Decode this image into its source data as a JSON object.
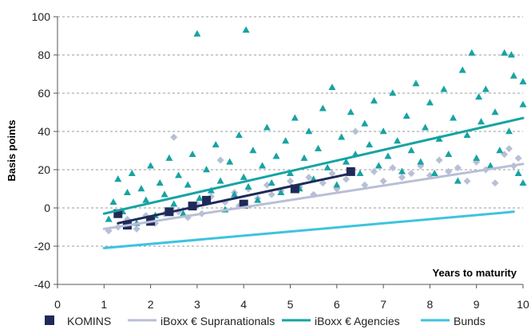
{
  "chart_data": {
    "type": "scatter",
    "title": "",
    "xlabel": "Years to maturity",
    "ylabel": "Basis points",
    "xlim": [
      0,
      10
    ],
    "ylim": [
      -40,
      100
    ],
    "x_ticks": [
      0,
      1,
      2,
      3,
      4,
      5,
      6,
      7,
      8,
      9,
      10
    ],
    "y_ticks": [
      -40,
      -20,
      0,
      20,
      40,
      60,
      80,
      100
    ],
    "grid": "horizontal dashed",
    "legend_position": "bottom",
    "series": [
      {
        "name": "KOMINS",
        "marker": "square",
        "color": "#1f2a5a",
        "points": [
          [
            1.3,
            -3
          ],
          [
            1.5,
            -9
          ],
          [
            2.0,
            -7
          ],
          [
            2.4,
            -2
          ],
          [
            2.9,
            1
          ],
          [
            3.2,
            4
          ],
          [
            4.0,
            2
          ],
          [
            5.1,
            10
          ],
          [
            6.3,
            19
          ]
        ]
      },
      {
        "name": "iBoxx € Supranationals",
        "marker": "diamond",
        "color": "#b8bfd6",
        "points": [
          [
            1.1,
            -12
          ],
          [
            1.3,
            -10
          ],
          [
            1.5,
            -6
          ],
          [
            1.7,
            -11
          ],
          [
            1.9,
            -4
          ],
          [
            2.1,
            -8
          ],
          [
            2.3,
            -3
          ],
          [
            2.5,
            37
          ],
          [
            2.6,
            -2
          ],
          [
            2.8,
            -5
          ],
          [
            3.0,
            2
          ],
          [
            3.1,
            -3
          ],
          [
            3.3,
            6
          ],
          [
            3.5,
            25
          ],
          [
            3.6,
            3
          ],
          [
            3.8,
            8
          ],
          [
            3.9,
            1
          ],
          [
            4.1,
            10
          ],
          [
            4.3,
            5
          ],
          [
            4.5,
            12
          ],
          [
            4.6,
            7
          ],
          [
            4.8,
            9
          ],
          [
            5.0,
            14
          ],
          [
            5.2,
            11
          ],
          [
            5.4,
            16
          ],
          [
            5.5,
            7
          ],
          [
            5.7,
            13
          ],
          [
            5.9,
            18
          ],
          [
            6.0,
            10
          ],
          [
            6.2,
            15
          ],
          [
            6.4,
            40
          ],
          [
            6.6,
            12
          ],
          [
            6.8,
            19
          ],
          [
            7.0,
            14
          ],
          [
            7.2,
            21
          ],
          [
            7.4,
            16
          ],
          [
            7.6,
            18
          ],
          [
            7.8,
            22
          ],
          [
            8.0,
            17
          ],
          [
            8.2,
            25
          ],
          [
            8.4,
            19
          ],
          [
            8.6,
            21
          ],
          [
            8.8,
            14
          ],
          [
            9.0,
            24
          ],
          [
            9.2,
            20
          ],
          [
            9.4,
            13
          ],
          [
            9.6,
            28
          ],
          [
            9.7,
            31
          ],
          [
            9.8,
            22
          ],
          [
            9.9,
            26
          ]
        ]
      },
      {
        "name": "iBoxx € Agencies",
        "marker": "triangle",
        "color": "#17a3a3",
        "points": [
          [
            1.1,
            -6
          ],
          [
            1.2,
            3
          ],
          [
            1.3,
            15
          ],
          [
            1.4,
            -2
          ],
          [
            1.5,
            8
          ],
          [
            1.6,
            18
          ],
          [
            1.7,
            -8
          ],
          [
            1.8,
            10
          ],
          [
            1.9,
            4
          ],
          [
            2.0,
            22
          ],
          [
            2.1,
            -4
          ],
          [
            2.2,
            13
          ],
          [
            2.3,
            7
          ],
          [
            2.4,
            26
          ],
          [
            2.5,
            2
          ],
          [
            2.6,
            17
          ],
          [
            2.7,
            -3
          ],
          [
            2.8,
            12
          ],
          [
            2.9,
            28
          ],
          [
            3.0,
            91
          ],
          [
            3.05,
            5
          ],
          [
            3.2,
            20
          ],
          [
            3.3,
            9
          ],
          [
            3.4,
            33
          ],
          [
            3.5,
            14
          ],
          [
            3.6,
            -1
          ],
          [
            3.7,
            24
          ],
          [
            3.8,
            7
          ],
          [
            3.9,
            38
          ],
          [
            4.0,
            16
          ],
          [
            4.05,
            93
          ],
          [
            4.1,
            11
          ],
          [
            4.2,
            30
          ],
          [
            4.3,
            4
          ],
          [
            4.4,
            22
          ],
          [
            4.5,
            42
          ],
          [
            4.6,
            13
          ],
          [
            4.7,
            27
          ],
          [
            4.8,
            8
          ],
          [
            4.9,
            35
          ],
          [
            5.0,
            18
          ],
          [
            5.1,
            47
          ],
          [
            5.2,
            10
          ],
          [
            5.3,
            26
          ],
          [
            5.4,
            40
          ],
          [
            5.5,
            15
          ],
          [
            5.6,
            31
          ],
          [
            5.7,
            52
          ],
          [
            5.8,
            21
          ],
          [
            5.9,
            63
          ],
          [
            6.0,
            12
          ],
          [
            6.1,
            37
          ],
          [
            6.2,
            24
          ],
          [
            6.3,
            50
          ],
          [
            6.4,
            28
          ],
          [
            6.5,
            18
          ],
          [
            6.6,
            44
          ],
          [
            6.7,
            33
          ],
          [
            6.8,
            56
          ],
          [
            6.9,
            22
          ],
          [
            7.0,
            40
          ],
          [
            7.1,
            27
          ],
          [
            7.2,
            60
          ],
          [
            7.3,
            35
          ],
          [
            7.4,
            19
          ],
          [
            7.5,
            48
          ],
          [
            7.6,
            30
          ],
          [
            7.7,
            65
          ],
          [
            7.8,
            24
          ],
          [
            7.9,
            42
          ],
          [
            8.0,
            55
          ],
          [
            8.1,
            18
          ],
          [
            8.2,
            36
          ],
          [
            8.3,
            62
          ],
          [
            8.4,
            28
          ],
          [
            8.5,
            47
          ],
          [
            8.6,
            14
          ],
          [
            8.7,
            72
          ],
          [
            8.8,
            38
          ],
          [
            8.9,
            81
          ],
          [
            9.0,
            26
          ],
          [
            9.05,
            58
          ],
          [
            9.1,
            45
          ],
          [
            9.2,
            62
          ],
          [
            9.3,
            22
          ],
          [
            9.4,
            50
          ],
          [
            9.5,
            30
          ],
          [
            9.6,
            81
          ],
          [
            9.7,
            40
          ],
          [
            9.75,
            80
          ],
          [
            9.8,
            69
          ],
          [
            9.9,
            18
          ],
          [
            10.0,
            66
          ],
          [
            10.0,
            54
          ],
          [
            10.0,
            13
          ]
        ]
      }
    ],
    "lines": [
      {
        "name": "KOMINS",
        "color": "#1f2a5a",
        "x": [
          1.3,
          6.3
        ],
        "y": [
          -8,
          18
        ]
      },
      {
        "name": "iBoxx € Supranationals",
        "color": "#b8bfd6",
        "x": [
          1.0,
          10.0
        ],
        "y": [
          -11,
          23
        ]
      },
      {
        "name": "iBoxx € Agencies",
        "color": "#17a3a3",
        "x": [
          1.0,
          10.0
        ],
        "y": [
          -3,
          47
        ]
      },
      {
        "name": "Bunds",
        "color": "#3ec3e0",
        "x": [
          1.0,
          9.8
        ],
        "y": [
          -21,
          -2
        ]
      }
    ],
    "legend": [
      {
        "name": "KOMINS",
        "style": "square",
        "color": "#1f2a5a"
      },
      {
        "name": "iBoxx € Supranationals",
        "style": "line",
        "color": "#b8bfd6"
      },
      {
        "name": "iBoxx € Agencies",
        "style": "line",
        "color": "#17a3a3"
      },
      {
        "name": "Bunds",
        "style": "line",
        "color": "#3ec3e0"
      }
    ]
  }
}
